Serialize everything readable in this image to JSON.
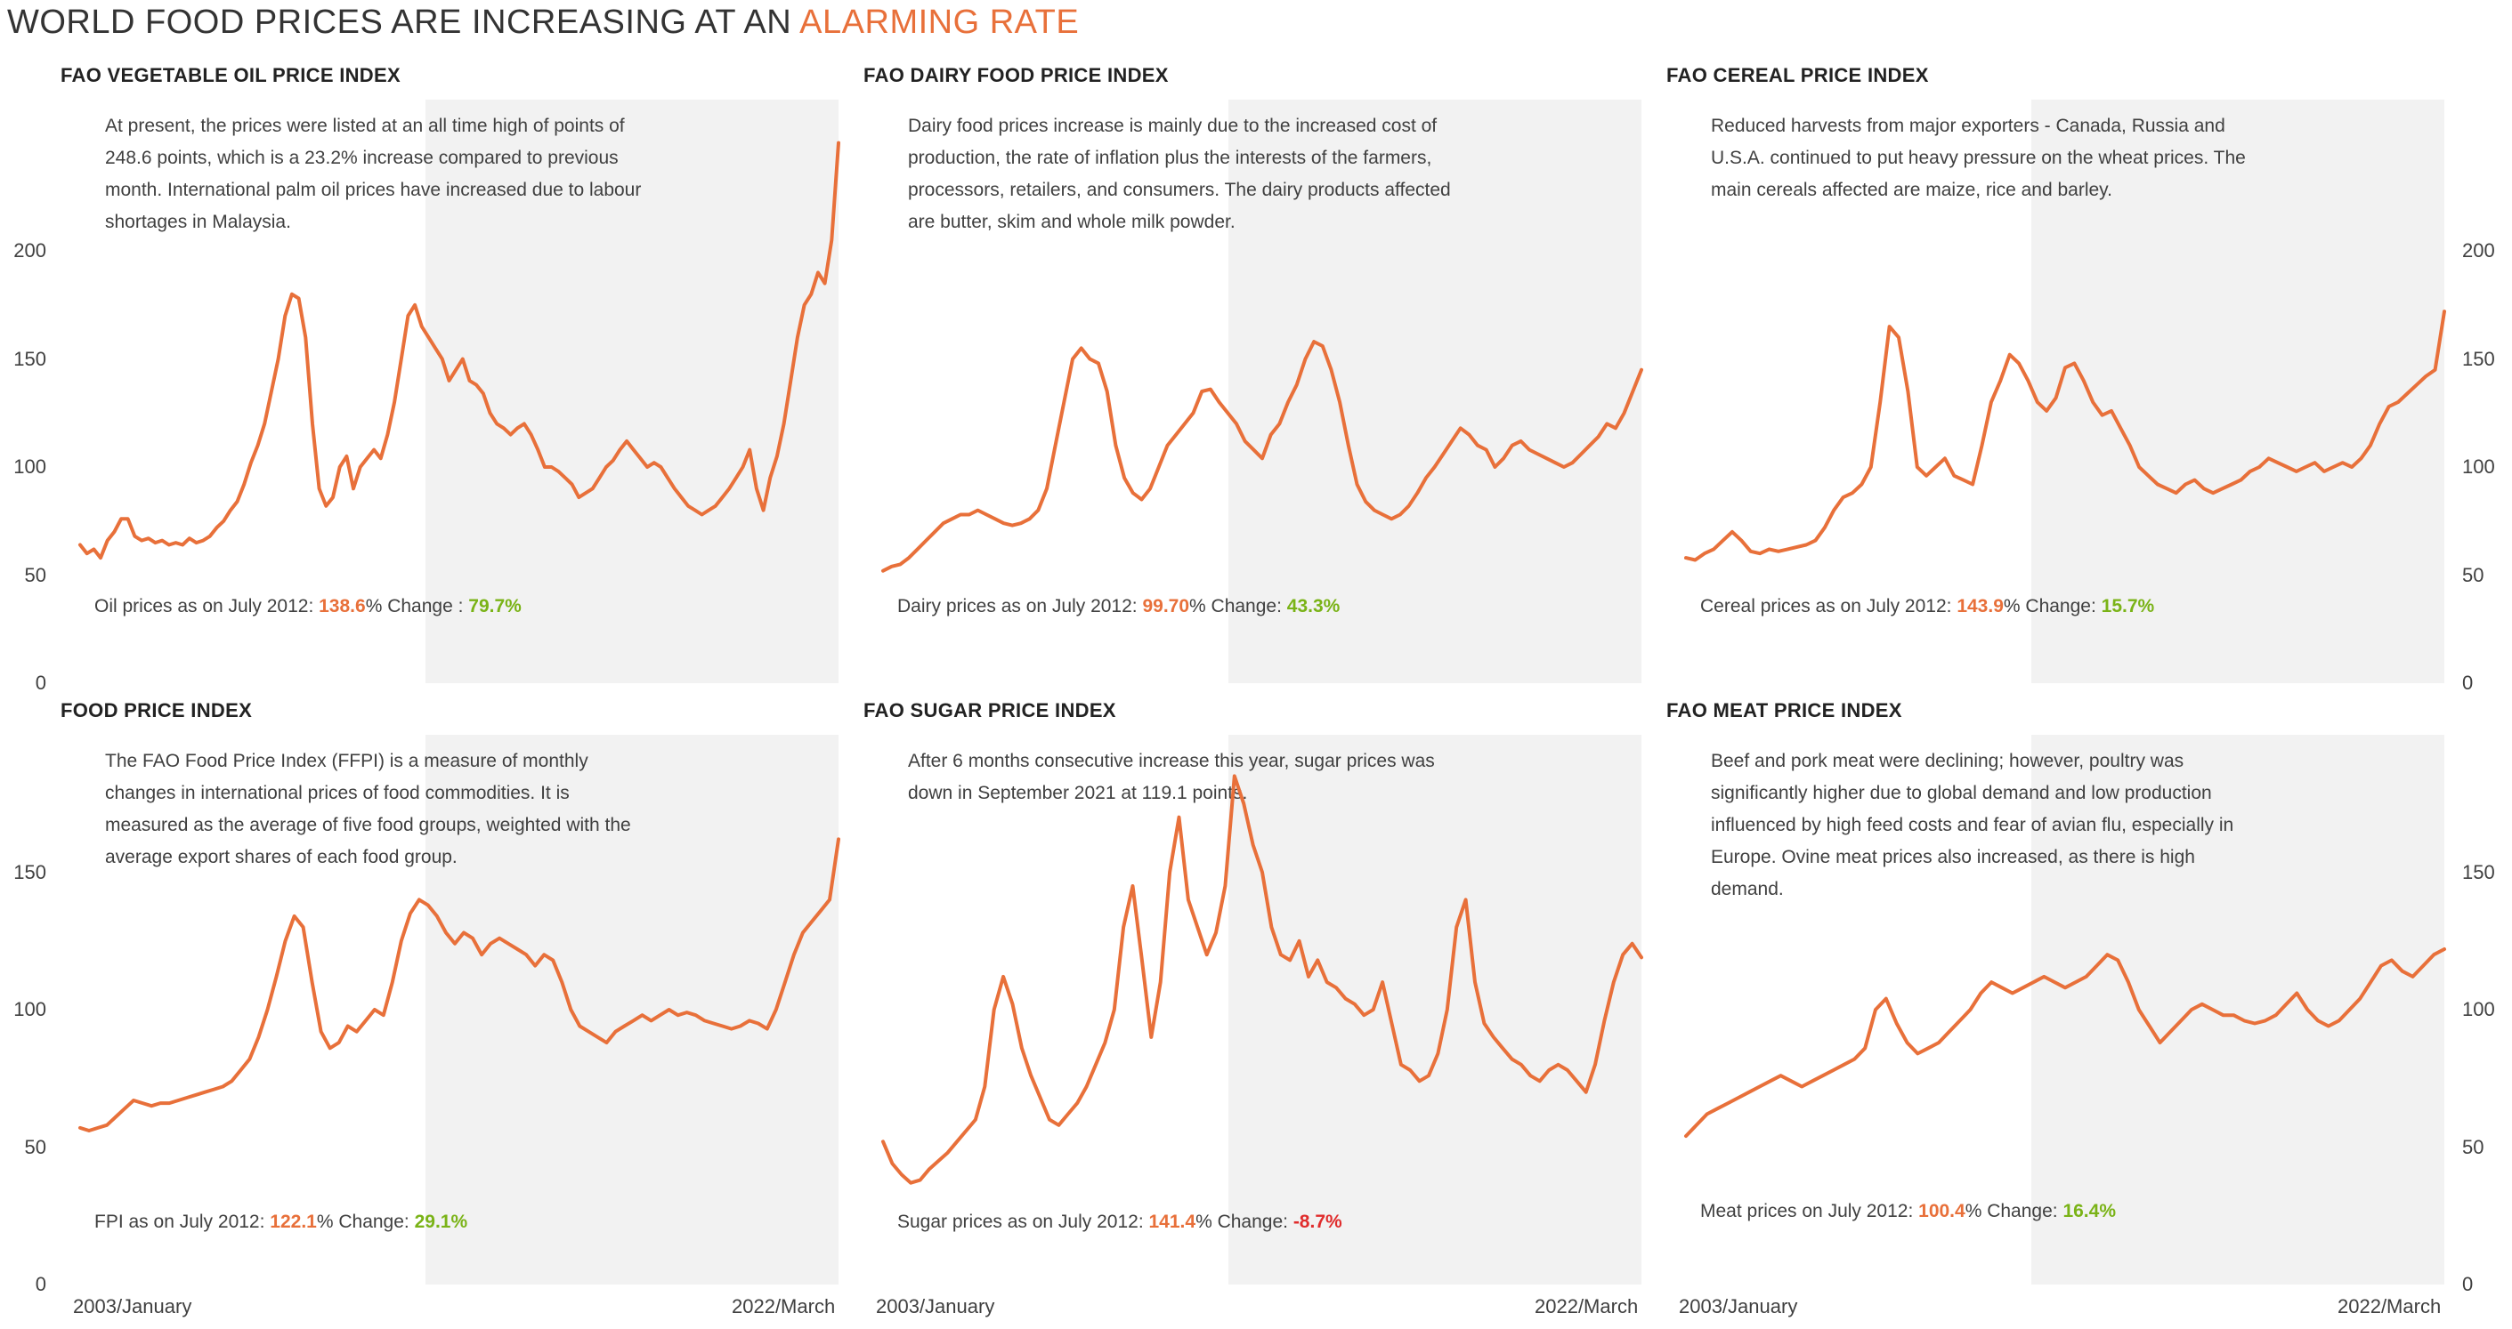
{
  "header": {
    "title_main": "WORLD FOOD PRICES ARE INCREASING AT AN ",
    "title_accent": "ALARMING RATE"
  },
  "colors": {
    "line": "#e8703a",
    "shade": "#f2f2f2",
    "up": "#7ab317",
    "down": "#e02c2c"
  },
  "x_axis": {
    "start_label": "2003/January",
    "end_label": "2022/March"
  },
  "panels": [
    {
      "title": "FAO VEGETABLE OIL PRICE INDEX",
      "description": "At present, the prices were listed at an all time high of points of 248.6 points, which is a 23.2% increase compared to previous month. International palm oil prices have increased due to labour shortages in Malaysia.",
      "stat_prefix": "Oil prices as on July 2012: ",
      "stat_price": "138.6",
      "stat_middle": "% Change : ",
      "stat_change": "79.7%",
      "stat_direction": "up"
    },
    {
      "title": "FAO DAIRY FOOD PRICE INDEX",
      "description": "Dairy food prices increase is mainly due to the increased cost of production, the rate of inflation plus the interests of the farmers, processors, retailers, and consumers. The dairy products affected are butter, skim and whole milk powder.",
      "stat_prefix": "Dairy prices as on July 2012: ",
      "stat_price": "99.70",
      "stat_middle": "% Change: ",
      "stat_change": "43.3%",
      "stat_direction": "up"
    },
    {
      "title": "FAO CEREAL PRICE INDEX",
      "description": "Reduced harvests from major exporters - Canada, Russia and U.S.A. continued to put heavy pressure on the wheat prices. The main cereals affected are maize, rice and barley.",
      "stat_prefix": "Cereal prices as on July 2012: ",
      "stat_price": "143.9",
      "stat_middle": "% Change: ",
      "stat_change": "15.7%",
      "stat_direction": "up"
    },
    {
      "title": "FOOD PRICE INDEX",
      "description": "The FAO Food Price Index (FFPI) is a measure of monthly changes in international prices of food commodities. It is measured as the average of five food groups, weighted with the average export shares of each food group.",
      "stat_prefix": "FPI as on July 2012: ",
      "stat_price": "122.1",
      "stat_middle": "% Change: ",
      "stat_change": "29.1%",
      "stat_direction": "up"
    },
    {
      "title": "FAO SUGAR PRICE INDEX",
      "description": "After 6 months consecutive increase this year, sugar prices was down in September 2021 at 119.1 points.",
      "stat_prefix": "Sugar prices as on July 2012: ",
      "stat_price": "141.4",
      "stat_middle": "% Change: ",
      "stat_change": "-8.7%",
      "stat_direction": "down"
    },
    {
      "title": "FAO MEAT PRICE INDEX",
      "description": "Beef and pork meat were declining; however, poultry was significantly higher due to global demand and low production influenced by high feed costs and fear of avian flu, especially in Europe. Ovine meat prices also increased, as there is high demand.",
      "stat_prefix": "Meat prices on July 2012: ",
      "stat_price": "100.4",
      "stat_middle": "% Change: ",
      "stat_change": "16.4%",
      "stat_direction": "up"
    }
  ],
  "chart_data": [
    {
      "type": "line",
      "title": "FAO VEGETABLE OIL PRICE INDEX",
      "ylim": [
        0,
        270
      ],
      "yticks": [
        0,
        50,
        100,
        150,
        200
      ],
      "highlight_range": [
        "2012/July",
        "2022/March"
      ],
      "x_start": "2003/January",
      "x_end": "2022/March",
      "values": [
        64,
        60,
        62,
        58,
        66,
        70,
        76,
        76,
        68,
        66,
        67,
        65,
        66,
        64,
        65,
        64,
        67,
        65,
        66,
        68,
        72,
        75,
        80,
        84,
        92,
        102,
        110,
        120,
        135,
        150,
        170,
        180,
        178,
        160,
        120,
        90,
        82,
        86,
        100,
        105,
        90,
        100,
        104,
        108,
        104,
        115,
        130,
        150,
        170,
        175,
        165,
        160,
        155,
        150,
        140,
        145,
        150,
        140,
        138,
        134,
        125,
        120,
        118,
        115,
        118,
        120,
        115,
        108,
        100,
        100,
        98,
        95,
        92,
        86,
        88,
        90,
        95,
        100,
        103,
        108,
        112,
        108,
        104,
        100,
        102,
        100,
        95,
        90,
        86,
        82,
        80,
        78,
        80,
        82,
        86,
        90,
        95,
        100,
        108,
        90,
        80,
        95,
        105,
        120,
        140,
        160,
        175,
        180,
        190,
        185,
        205,
        250
      ],
      "note": "monthly-sampled approximation"
    },
    {
      "type": "line",
      "title": "FAO DAIRY FOOD PRICE INDEX",
      "ylim": [
        0,
        270
      ],
      "yticks": [
        0,
        50,
        100,
        150,
        200
      ],
      "highlight_range": [
        "2012/July",
        "2022/March"
      ],
      "values": [
        52,
        54,
        55,
        58,
        62,
        66,
        70,
        74,
        76,
        78,
        78,
        80,
        78,
        76,
        74,
        73,
        74,
        76,
        80,
        90,
        110,
        130,
        150,
        155,
        150,
        148,
        135,
        110,
        95,
        88,
        85,
        90,
        100,
        110,
        115,
        120,
        125,
        135,
        136,
        130,
        125,
        120,
        112,
        108,
        104,
        115,
        120,
        130,
        138,
        150,
        158,
        156,
        145,
        130,
        110,
        92,
        84,
        80,
        78,
        76,
        78,
        82,
        88,
        95,
        100,
        106,
        112,
        118,
        115,
        110,
        108,
        100,
        104,
        110,
        112,
        108,
        106,
        104,
        102,
        100,
        102,
        106,
        110,
        114,
        120,
        118,
        125,
        135,
        145
      ],
      "note": "monthly-sampled approximation"
    },
    {
      "type": "line",
      "title": "FAO CEREAL PRICE INDEX",
      "ylim": [
        0,
        270
      ],
      "yticks": [
        0,
        50,
        100,
        150,
        200
      ],
      "highlight_range": [
        "2012/July",
        "2022/March"
      ],
      "values": [
        58,
        57,
        60,
        62,
        66,
        70,
        66,
        61,
        60,
        62,
        61,
        62,
        63,
        64,
        66,
        72,
        80,
        86,
        88,
        92,
        100,
        130,
        165,
        160,
        135,
        100,
        96,
        100,
        104,
        96,
        94,
        92,
        110,
        130,
        140,
        152,
        148,
        140,
        130,
        126,
        132,
        146,
        148,
        140,
        130,
        124,
        126,
        118,
        110,
        100,
        96,
        92,
        90,
        88,
        92,
        94,
        90,
        88,
        90,
        92,
        94,
        98,
        100,
        104,
        102,
        100,
        98,
        100,
        102,
        98,
        100,
        102,
        100,
        104,
        110,
        120,
        128,
        130,
        134,
        138,
        142,
        145,
        172
      ],
      "note": "monthly-sampled approximation"
    },
    {
      "type": "line",
      "title": "FOOD PRICE INDEX",
      "ylim": [
        0,
        200
      ],
      "yticks": [
        0,
        50,
        100,
        150
      ],
      "highlight_range": [
        "2012/July",
        "2022/March"
      ],
      "values": [
        57,
        56,
        57,
        58,
        61,
        64,
        67,
        66,
        65,
        66,
        66,
        67,
        68,
        69,
        70,
        71,
        72,
        74,
        78,
        82,
        90,
        100,
        112,
        125,
        134,
        130,
        110,
        92,
        86,
        88,
        94,
        92,
        96,
        100,
        98,
        110,
        125,
        135,
        140,
        138,
        134,
        128,
        124,
        128,
        126,
        120,
        124,
        126,
        124,
        122,
        120,
        116,
        120,
        118,
        110,
        100,
        94,
        92,
        90,
        88,
        92,
        94,
        96,
        98,
        96,
        98,
        100,
        98,
        99,
        98,
        96,
        95,
        94,
        93,
        94,
        96,
        95,
        93,
        100,
        110,
        120,
        128,
        132,
        136,
        140,
        162
      ],
      "note": "monthly-sampled approximation"
    },
    {
      "type": "line",
      "title": "FAO SUGAR PRICE INDEX",
      "ylim": [
        0,
        200
      ],
      "yticks": [
        0,
        50,
        100,
        150
      ],
      "highlight_range": [
        "2012/July",
        "2022/March"
      ],
      "values": [
        52,
        44,
        40,
        37,
        38,
        42,
        45,
        48,
        52,
        56,
        60,
        72,
        100,
        112,
        102,
        86,
        76,
        68,
        60,
        58,
        62,
        66,
        72,
        80,
        88,
        100,
        130,
        145,
        118,
        90,
        110,
        150,
        170,
        140,
        130,
        120,
        128,
        145,
        185,
        175,
        160,
        150,
        130,
        120,
        118,
        125,
        112,
        118,
        110,
        108,
        104,
        102,
        98,
        100,
        110,
        95,
        80,
        78,
        74,
        76,
        84,
        100,
        130,
        140,
        110,
        95,
        90,
        86,
        82,
        80,
        76,
        74,
        78,
        80,
        78,
        74,
        70,
        80,
        96,
        110,
        120,
        124,
        119
      ],
      "note": "monthly-sampled approximation"
    },
    {
      "type": "line",
      "title": "FAO MEAT PRICE INDEX",
      "ylim": [
        0,
        200
      ],
      "yticks": [
        0,
        50,
        100,
        150
      ],
      "highlight_range": [
        "2012/July",
        "2022/March"
      ],
      "values": [
        54,
        58,
        62,
        64,
        66,
        68,
        70,
        72,
        74,
        76,
        74,
        72,
        74,
        76,
        78,
        80,
        82,
        86,
        100,
        104,
        95,
        88,
        84,
        86,
        88,
        92,
        96,
        100,
        106,
        110,
        108,
        106,
        108,
        110,
        112,
        110,
        108,
        110,
        112,
        116,
        120,
        118,
        110,
        100,
        94,
        88,
        92,
        96,
        100,
        102,
        100,
        98,
        98,
        96,
        95,
        96,
        98,
        102,
        106,
        100,
        96,
        94,
        96,
        100,
        104,
        110,
        116,
        118,
        114,
        112,
        116,
        120,
        122
      ],
      "note": "monthly-sampled approximation"
    }
  ]
}
